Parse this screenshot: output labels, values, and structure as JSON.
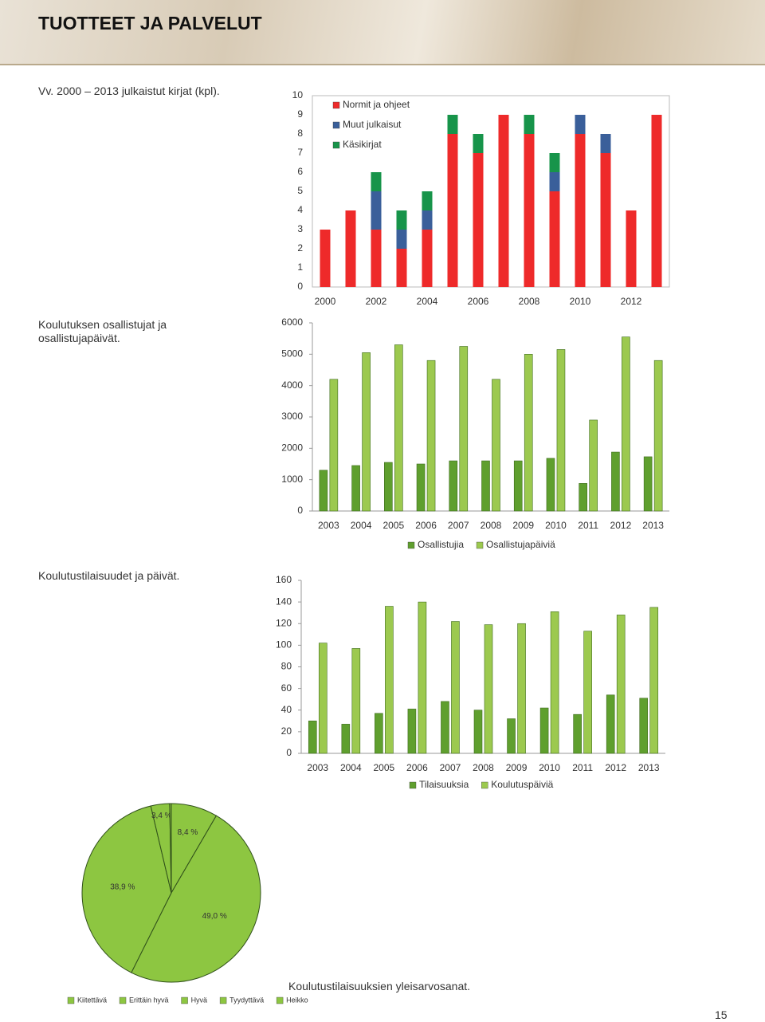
{
  "header": {
    "title": "TUOTTEET JA PALVELUT"
  },
  "captions": [
    "Vv. 2000 – 2013 julkaistut kirjat (kpl).",
    "Koulutuksen osallistujat ja osallistujapäivät.",
    "Koulutustilaisuudet ja päivät.",
    "Koulutustilaisuuksien yleisarvosanat."
  ],
  "page_number": "15",
  "chart_data": [
    {
      "type": "bar",
      "stacked": true,
      "legend": "top-left",
      "categories": [
        "2000",
        null,
        "2002",
        null,
        "2004",
        null,
        "2006",
        null,
        "2008",
        null,
        "2010",
        null,
        "2012",
        null
      ],
      "series": [
        {
          "name": "Normit ja ohjeet",
          "color": "#ee2a2a",
          "values": [
            3,
            4,
            3,
            2,
            3,
            8,
            7,
            9,
            8,
            5,
            8,
            7,
            4,
            9
          ]
        },
        {
          "name": "Muut julkaisut",
          "color": "#3a5f9a",
          "values": [
            0,
            0,
            2,
            1,
            1,
            0,
            0,
            0,
            0,
            1,
            1,
            1,
            0,
            0
          ]
        },
        {
          "name": "Käsikirjat",
          "color": "#17944a",
          "values": [
            0,
            0,
            1,
            1,
            1,
            1,
            1,
            0,
            1,
            1,
            0,
            0,
            0,
            0
          ]
        }
      ],
      "ylim": [
        0,
        10
      ],
      "yticks": [
        0,
        1,
        2,
        3,
        4,
        5,
        6,
        7,
        8,
        9,
        10
      ]
    },
    {
      "type": "bar",
      "stacked": false,
      "legend": "bottom",
      "categories": [
        "2003",
        "2004",
        "2005",
        "2006",
        "2007",
        "2008",
        "2009",
        "2010",
        "2011",
        "2012",
        "2013"
      ],
      "series": [
        {
          "name": "Osallistujia",
          "color": "#5f9f2e",
          "values": [
            1300,
            1450,
            1550,
            1500,
            1600,
            1600,
            1600,
            1680,
            880,
            1880,
            1730
          ]
        },
        {
          "name": "Osallistujapäiviä",
          "color": "#9cc94f",
          "values": [
            4200,
            5050,
            5300,
            4800,
            5250,
            4200,
            5000,
            5150,
            2900,
            5550,
            4800
          ]
        }
      ],
      "ylim": [
        0,
        6000
      ],
      "yticks": [
        0,
        1000,
        2000,
        3000,
        4000,
        5000,
        6000
      ]
    },
    {
      "type": "bar",
      "stacked": false,
      "legend": "bottom",
      "categories": [
        "2003",
        "2004",
        "2005",
        "2006",
        "2007",
        "2008",
        "2009",
        "2010",
        "2011",
        "2012",
        "2013"
      ],
      "series": [
        {
          "name": "Tilaisuuksia",
          "color": "#5f9f2e",
          "values": [
            30,
            27,
            37,
            41,
            48,
            40,
            32,
            42,
            36,
            54,
            51
          ]
        },
        {
          "name": "Koulutuspäiviä",
          "color": "#9cc94f",
          "values": [
            102,
            97,
            136,
            140,
            122,
            119,
            120,
            131,
            113,
            128,
            135
          ]
        }
      ],
      "ylim": [
        0,
        160
      ],
      "yticks": [
        0,
        20,
        40,
        60,
        80,
        100,
        120,
        140,
        160
      ]
    },
    {
      "type": "pie",
      "legend": "bottom",
      "color": "#8dc641",
      "categories": [
        "Kiitettävä",
        "Erittäin hyvä",
        "Hyvä",
        "Tyydyttävä",
        "Heikko"
      ],
      "values": [
        8.4,
        49.0,
        38.9,
        3.4,
        0.3
      ],
      "value_labels": [
        "8,4 %",
        "49,0 %",
        "38,9 %",
        "3,4 %",
        null
      ]
    }
  ]
}
